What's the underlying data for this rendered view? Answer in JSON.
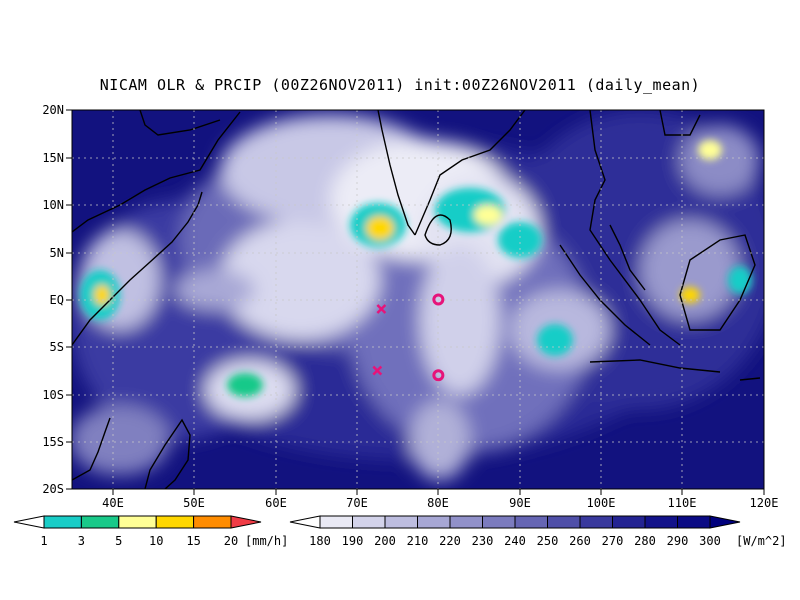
{
  "title": "NICAM OLR & PRCIP (00Z26NOV2011) init:00Z26NOV2011 (daily_mean)",
  "lat_labels": [
    "20N",
    "15N",
    "10N",
    "5N",
    "EQ",
    "5S",
    "10S",
    "15S",
    "20S"
  ],
  "lon_labels": [
    "40E",
    "50E",
    "60E",
    "70E",
    "80E",
    "90E",
    "100E",
    "110E",
    "120E"
  ],
  "map_extent": {
    "lon_range": [
      35,
      120
    ],
    "lat_range": [
      -20,
      20
    ]
  },
  "markers": [
    {
      "symbol": "x",
      "lon": 73,
      "lat": -1
    },
    {
      "symbol": "x",
      "lon": 72.5,
      "lat": -7.5
    },
    {
      "symbol": "o",
      "lon": 80,
      "lat": 0
    },
    {
      "symbol": "o",
      "lon": 80,
      "lat": -8
    }
  ],
  "precip_legend": {
    "unit": "[mm/h]",
    "labels": [
      "1",
      "3",
      "5",
      "10",
      "15",
      "20"
    ],
    "colors": [
      "#ffffff",
      "#19cdc7",
      "#19c989",
      "#ffff96",
      "#ffd700",
      "#ff8c00",
      "#f03c46"
    ]
  },
  "olr_legend": {
    "unit": "[W/m^2]",
    "labels": [
      "180",
      "190",
      "200",
      "210",
      "220",
      "230",
      "240",
      "250",
      "260",
      "270",
      "280",
      "290",
      "300"
    ],
    "colors": [
      "#ffffff",
      "#e9e9f4",
      "#d3d3ea",
      "#bdbddf",
      "#a7a7d4",
      "#9191c9",
      "#7b7bbe",
      "#6565b3",
      "#4f4fa8",
      "#39399d",
      "#232392",
      "#12128a",
      "#0a0a84",
      "#00007d"
    ]
  },
  "colors": {
    "ocean_dark": "#12127f",
    "coast": "#000000",
    "marker": "#e6147a"
  }
}
